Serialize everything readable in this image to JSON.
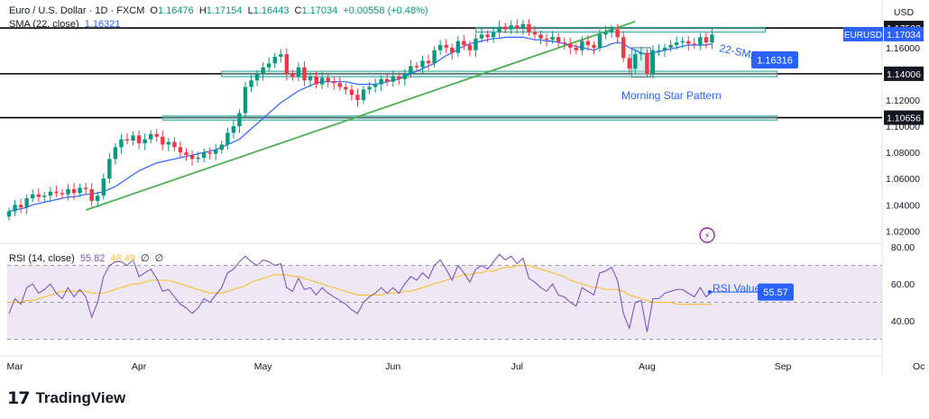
{
  "header": {
    "symbol_title": "Euro / U.S. Dollar · 1D · FXCM",
    "ohlc": {
      "o_label": "O",
      "o": "1.16476",
      "h_label": "H",
      "h": "1.17154",
      "l_label": "L",
      "l": "1.16443",
      "c_label": "C",
      "c": "1.17034",
      "change": "+0.00558 (+0.48%)"
    },
    "sma_legend": {
      "label": "SMA (22, close)",
      "value": "1.16321"
    },
    "rsi_legend": {
      "label": "RSI (14, close)",
      "value": "55.82",
      "ma_value": "48.49",
      "extra1": "∅",
      "extra2": "∅"
    }
  },
  "colors": {
    "up": "#089981",
    "down": "#f23645",
    "sma": "#2962ff",
    "rsi": "#7e57c2",
    "rsi_ma": "#fbc02d",
    "trendline": "#4caf50",
    "zone_stroke": "#26a69a",
    "zone_fill": "#b2dfdb",
    "rsi_band": "#ede7f6",
    "badge_blue": "#2962ff",
    "badge_dark": "#131722",
    "axis_text": "#131722"
  },
  "price_axis": {
    "currency": "USD",
    "ticks": [
      "1.16000",
      "1.12000",
      "1.10000",
      "1.08000",
      "1.06000",
      "1.04000",
      "1.02000"
    ],
    "tick_values": [
      1.16,
      1.12,
      1.1,
      1.08,
      1.06,
      1.04,
      1.02
    ],
    "symbol_badge": "EURUSD",
    "last_price": "1.17034",
    "level_labels": [
      "1.17503",
      "1.14006",
      "1.10656"
    ],
    "level_values": [
      1.17503,
      1.14006,
      1.10656
    ]
  },
  "rsi_axis": {
    "ticks": [
      "80.00",
      "60.00",
      "40.00"
    ],
    "tick_values": [
      80,
      60,
      40
    ]
  },
  "time_axis": {
    "labels": [
      "Mar",
      "Apr",
      "May",
      "Jun",
      "Jul",
      "Aug",
      "Sep",
      "Oc"
    ]
  },
  "annotations": {
    "sma_label": "22-SMA",
    "sma_value_badge": "1.16316",
    "pattern_label": "Morning Star Pattern",
    "rsi_label": "RSI Value",
    "rsi_value_badge": "55.57"
  },
  "branding": {
    "logo_text": "TradingView"
  },
  "chart_data": {
    "type": "candlestick",
    "title": "Euro / U.S. Dollar · 1D · FXCM",
    "xlabel": "",
    "ylabel": "USD",
    "ylim": [
      1.012,
      1.184
    ],
    "rsi_ylim": [
      22,
      82
    ],
    "horizontal_levels": [
      1.17503,
      1.14006,
      1.10656
    ],
    "month_boundaries": {
      "Mar": 1,
      "Apr": 22,
      "May": 43,
      "Jun": 65,
      "Jul": 86,
      "Aug": 108,
      "Sep": 131
    },
    "close": [
      1.035,
      1.04,
      1.038,
      1.045,
      1.048,
      1.046,
      1.047,
      1.05,
      1.049,
      1.048,
      1.052,
      1.049,
      1.053,
      1.052,
      1.043,
      1.047,
      1.06,
      1.075,
      1.084,
      1.09,
      1.089,
      1.093,
      1.087,
      1.09,
      1.094,
      1.092,
      1.086,
      1.088,
      1.084,
      1.08,
      1.078,
      1.075,
      1.076,
      1.08,
      1.079,
      1.082,
      1.086,
      1.095,
      1.1,
      1.11,
      1.13,
      1.135,
      1.14,
      1.145,
      1.148,
      1.153,
      1.155,
      1.14,
      1.138,
      1.145,
      1.135,
      1.138,
      1.132,
      1.137,
      1.134,
      1.133,
      1.13,
      1.128,
      1.124,
      1.12,
      1.128,
      1.13,
      1.132,
      1.136,
      1.134,
      1.138,
      1.136,
      1.14,
      1.146,
      1.145,
      1.15,
      1.148,
      1.158,
      1.162,
      1.16,
      1.156,
      1.165,
      1.162,
      1.158,
      1.167,
      1.17,
      1.168,
      1.172,
      1.176,
      1.174,
      1.177,
      1.175,
      1.178,
      1.172,
      1.17,
      1.167,
      1.166,
      1.168,
      1.164,
      1.163,
      1.16,
      1.158,
      1.165,
      1.162,
      1.16,
      1.17,
      1.172,
      1.174,
      1.168,
      1.152,
      1.144,
      1.155,
      1.156,
      1.14,
      1.158,
      1.158,
      1.16,
      1.162,
      1.164,
      1.165,
      1.163,
      1.162,
      1.168,
      1.164,
      1.17
    ],
    "sma": [
      1.035,
      1.036,
      1.037,
      1.038,
      1.04,
      1.041,
      1.042,
      1.043,
      1.044,
      1.045,
      1.046,
      1.046,
      1.047,
      1.048,
      1.048,
      1.049,
      1.05,
      1.052,
      1.054,
      1.057,
      1.06,
      1.063,
      1.066,
      1.068,
      1.07,
      1.072,
      1.073,
      1.074,
      1.075,
      1.076,
      1.077,
      1.078,
      1.079,
      1.08,
      1.081,
      1.082,
      1.084,
      1.086,
      1.088,
      1.09,
      1.094,
      1.098,
      1.102,
      1.106,
      1.11,
      1.114,
      1.118,
      1.121,
      1.124,
      1.127,
      1.129,
      1.131,
      1.133,
      1.134,
      1.134,
      1.134,
      1.134,
      1.134,
      1.133,
      1.132,
      1.132,
      1.132,
      1.132,
      1.133,
      1.134,
      1.135,
      1.136,
      1.138,
      1.14,
      1.142,
      1.144,
      1.146,
      1.148,
      1.151,
      1.154,
      1.156,
      1.159,
      1.161,
      1.163,
      1.164,
      1.165,
      1.166,
      1.167,
      1.167,
      1.168,
      1.168,
      1.168,
      1.168,
      1.167,
      1.166,
      1.166,
      1.165,
      1.165,
      1.164,
      1.163,
      1.162,
      1.161,
      1.16,
      1.159,
      1.158,
      1.16,
      1.161,
      1.163,
      1.164,
      1.163,
      1.16,
      1.158,
      1.156,
      1.155,
      1.156,
      1.157,
      1.158,
      1.159,
      1.16,
      1.161,
      1.162,
      1.162,
      1.162,
      1.162,
      1.163
    ],
    "rsi": [
      44,
      52,
      49,
      58,
      60,
      55,
      57,
      60,
      55,
      52,
      58,
      53,
      57,
      53,
      42,
      50,
      64,
      70,
      72,
      72,
      70,
      73,
      64,
      66,
      68,
      63,
      56,
      57,
      53,
      49,
      47,
      44,
      47,
      52,
      50,
      54,
      58,
      66,
      68,
      72,
      75,
      72,
      70,
      73,
      72,
      70,
      71,
      58,
      56,
      63,
      57,
      58,
      54,
      58,
      55,
      53,
      51,
      49,
      46,
      44,
      50,
      53,
      55,
      58,
      55,
      58,
      55,
      60,
      64,
      62,
      66,
      63,
      70,
      73,
      68,
      62,
      70,
      66,
      61,
      68,
      70,
      68,
      72,
      76,
      73,
      75,
      71,
      74,
      63,
      61,
      58,
      56,
      60,
      54,
      53,
      50,
      48,
      58,
      56,
      54,
      66,
      67,
      69,
      62,
      44,
      36,
      50,
      51,
      34,
      52,
      52,
      55,
      56,
      57,
      57,
      55,
      53,
      58,
      53,
      56
    ],
    "rsi_ma": [
      50,
      50,
      50,
      51,
      51,
      52,
      53,
      54,
      55,
      56,
      56,
      56,
      56,
      56,
      55,
      55,
      55,
      56,
      57,
      58,
      59,
      60,
      60,
      61,
      62,
      62,
      62,
      62,
      61,
      60,
      59,
      58,
      57,
      56,
      55,
      55,
      55,
      56,
      57,
      58,
      59,
      61,
      62,
      63,
      64,
      65,
      65,
      65,
      64,
      64,
      63,
      62,
      61,
      60,
      59,
      58,
      57,
      56,
      55,
      54,
      54,
      54,
      54,
      54,
      55,
      55,
      55,
      56,
      56,
      57,
      58,
      59,
      60,
      61,
      62,
      63,
      64,
      65,
      65,
      66,
      66,
      67,
      67,
      68,
      69,
      69,
      70,
      70,
      70,
      69,
      68,
      67,
      66,
      65,
      64,
      62,
      61,
      60,
      59,
      58,
      58,
      57,
      57,
      57,
      56,
      54,
      53,
      52,
      51,
      50,
      50,
      50,
      50,
      49,
      49,
      49,
      49,
      49,
      49,
      49
    ]
  }
}
